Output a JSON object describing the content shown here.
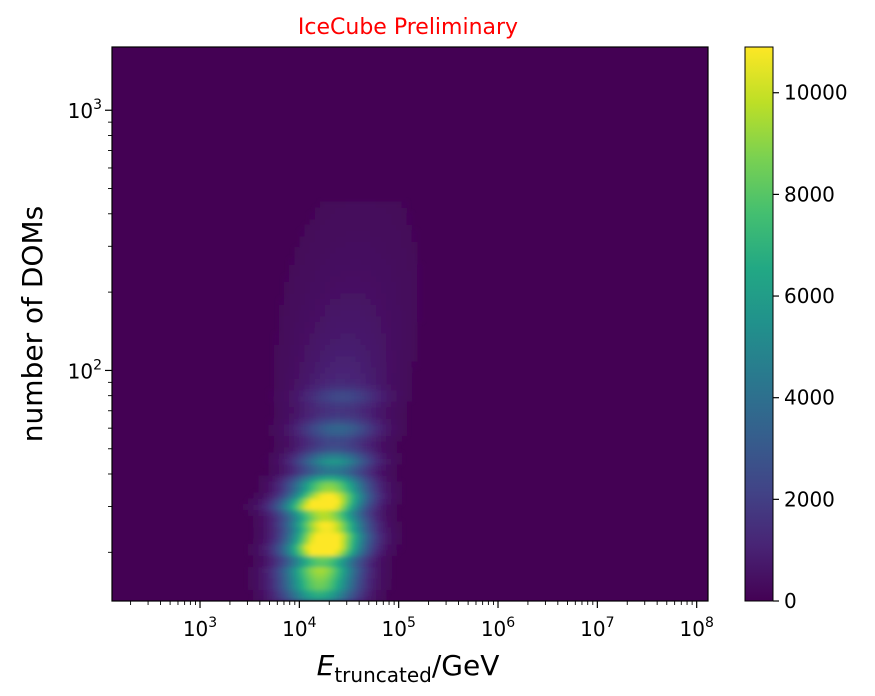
{
  "chart_data": {
    "type": "heatmap",
    "title": "IceCube Preliminary",
    "title_color": "#ff0000",
    "xlabel": {
      "main": "E",
      "sub": "truncated",
      "suffix": "/GeV"
    },
    "ylabel": "number of DOMs",
    "x_scale": "log",
    "y_scale": "log",
    "xlim": [
      130,
      130000000
    ],
    "ylim": [
      13,
      1750
    ],
    "x_ticks": [
      {
        "value": 1000,
        "base": "10",
        "exp": "3"
      },
      {
        "value": 10000,
        "base": "10",
        "exp": "4"
      },
      {
        "value": 100000,
        "base": "10",
        "exp": "5"
      },
      {
        "value": 1000000,
        "base": "10",
        "exp": "6"
      },
      {
        "value": 10000000,
        "base": "10",
        "exp": "7"
      },
      {
        "value": 100000000,
        "base": "10",
        "exp": "8"
      }
    ],
    "y_ticks": [
      {
        "value": 100,
        "base": "10",
        "exp": "2"
      },
      {
        "value": 1000,
        "base": "10",
        "exp": "3"
      }
    ],
    "colorbar": {
      "colormap": "viridis",
      "range": [
        0,
        10900
      ],
      "ticks": [
        "0",
        "2000",
        "4000",
        "6000",
        "8000",
        "10000"
      ],
      "tick_values": [
        0,
        2000,
        4000,
        6000,
        8000,
        10000
      ]
    },
    "background_color": "#440154",
    "peak": {
      "x": 15000,
      "y": 30,
      "value": 10900
    },
    "hotspots": [
      {
        "x": 17000,
        "y": 20.5,
        "value": 9500
      },
      {
        "x": 20000,
        "y": 23,
        "value": 8800
      },
      {
        "x": 18000,
        "y": 26,
        "value": 8200
      },
      {
        "x": 20000,
        "y": 33,
        "value": 8500
      },
      {
        "x": 19000,
        "y": 37,
        "value": 7000
      },
      {
        "x": 15000,
        "y": 17,
        "value": 5000
      },
      {
        "x": 15000,
        "y": 15,
        "value": 3500
      },
      {
        "x": 22000,
        "y": 45,
        "value": 4500
      },
      {
        "x": 25000,
        "y": 60,
        "value": 2500
      },
      {
        "x": 28000,
        "y": 80,
        "value": 1500
      }
    ]
  }
}
